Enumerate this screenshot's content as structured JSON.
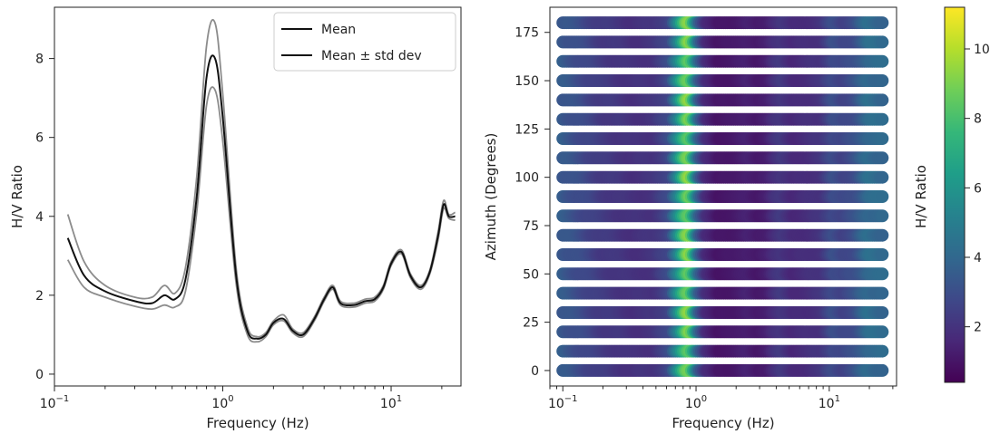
{
  "chart_data": [
    {
      "type": "line",
      "xscale": "log",
      "xlim": [
        0.1,
        26
      ],
      "ylim": [
        -0.3,
        9.3
      ],
      "xlabel": "Frequency (Hz)",
      "ylabel": "H/V Ratio",
      "x_ticks": [
        0.1,
        1,
        10
      ],
      "x_tick_labels": [
        {
          "base": "10",
          "exp": "−1"
        },
        {
          "base": "10",
          "exp": "0"
        },
        {
          "base": "10",
          "exp": "1"
        }
      ],
      "y_ticks": [
        0,
        2,
        4,
        6,
        8
      ],
      "grid": false,
      "legend_position": "top-right",
      "legend": [
        "Mean",
        "Mean ± std dev"
      ],
      "line_colors": {
        "mean": "#111111",
        "std": "#8c8c8c"
      },
      "series": [
        {
          "name": "Mean",
          "x": [
            0.12,
            0.15,
            0.2,
            0.3,
            0.38,
            0.45,
            0.52,
            0.6,
            0.7,
            0.8,
            0.9,
            1.0,
            1.2,
            1.4,
            1.6,
            1.8,
            2.0,
            2.3,
            2.6,
            3.0,
            3.5,
            4.0,
            4.5,
            5.0,
            6.0,
            7.0,
            8.0,
            9.0,
            10.0,
            11.5,
            13.0,
            15.0,
            17.0,
            19.0,
            20.5,
            22.0,
            24.0
          ],
          "y": [
            3.45,
            2.5,
            2.1,
            1.85,
            1.8,
            2.0,
            1.9,
            2.4,
            4.5,
            7.5,
            8.0,
            6.5,
            2.5,
            1.1,
            0.9,
            1.0,
            1.3,
            1.4,
            1.1,
            1.0,
            1.4,
            1.9,
            2.2,
            1.8,
            1.75,
            1.85,
            1.9,
            2.2,
            2.8,
            3.1,
            2.5,
            2.2,
            2.6,
            3.5,
            4.3,
            4.0,
            4.0
          ]
        },
        {
          "name": "Mean + std dev",
          "x": [
            0.12,
            0.15,
            0.2,
            0.3,
            0.38,
            0.45,
            0.52,
            0.6,
            0.7,
            0.8,
            0.9,
            1.0,
            1.2,
            1.4,
            1.6,
            1.8,
            2.0,
            2.3,
            2.6,
            3.0,
            3.5,
            4.0,
            4.5,
            5.0,
            6.0,
            7.0,
            8.0,
            9.0,
            10.0,
            11.5,
            13.0,
            15.0,
            17.0,
            19.0,
            20.5,
            22.0,
            24.0
          ],
          "y": [
            4.05,
            2.85,
            2.25,
            1.95,
            1.95,
            2.25,
            2.05,
            2.7,
            5.0,
            8.3,
            8.9,
            7.1,
            2.7,
            1.2,
            0.95,
            1.05,
            1.35,
            1.5,
            1.15,
            1.05,
            1.45,
            1.95,
            2.25,
            1.85,
            1.8,
            1.9,
            1.95,
            2.25,
            2.85,
            3.15,
            2.55,
            2.25,
            2.65,
            3.6,
            4.4,
            4.05,
            4.1
          ]
        },
        {
          "name": "Mean − std dev",
          "x": [
            0.12,
            0.15,
            0.2,
            0.3,
            0.38,
            0.45,
            0.52,
            0.6,
            0.7,
            0.8,
            0.9,
            1.0,
            1.2,
            1.4,
            1.6,
            1.8,
            2.0,
            2.3,
            2.6,
            3.0,
            3.5,
            4.0,
            4.5,
            5.0,
            6.0,
            7.0,
            8.0,
            9.0,
            10.0,
            11.5,
            13.0,
            15.0,
            17.0,
            19.0,
            20.5,
            22.0,
            24.0
          ],
          "y": [
            2.9,
            2.2,
            1.95,
            1.72,
            1.65,
            1.75,
            1.7,
            2.1,
            4.1,
            6.8,
            7.2,
            5.9,
            2.3,
            1.0,
            0.82,
            0.95,
            1.25,
            1.35,
            1.05,
            0.95,
            1.35,
            1.85,
            2.15,
            1.75,
            1.7,
            1.8,
            1.85,
            2.15,
            2.75,
            3.05,
            2.45,
            2.15,
            2.55,
            3.4,
            4.2,
            3.95,
            3.9
          ]
        }
      ]
    },
    {
      "type": "heatmap",
      "xscale": "log",
      "xlim": [
        0.08,
        32
      ],
      "ylim": [
        -8,
        188
      ],
      "xlabel": "Frequency (Hz)",
      "ylabel": "Azimuth (Degrees)",
      "x_ticks": [
        0.1,
        1,
        10
      ],
      "x_tick_labels": [
        {
          "base": "10",
          "exp": "−1"
        },
        {
          "base": "10",
          "exp": "0"
        },
        {
          "base": "10",
          "exp": "1"
        }
      ],
      "y_ticks": [
        0,
        25,
        50,
        75,
        100,
        125,
        150,
        175
      ],
      "azimuths": [
        0,
        10,
        20,
        30,
        40,
        50,
        60,
        70,
        80,
        90,
        100,
        110,
        120,
        130,
        140,
        150,
        160,
        170,
        180
      ],
      "freq_range": [
        0.1,
        25
      ],
      "profile_freqs": [
        0.1,
        0.2,
        0.35,
        0.5,
        0.65,
        0.75,
        0.85,
        0.9,
        0.95,
        1.05,
        1.2,
        1.5,
        2.0,
        2.5,
        3.0,
        3.5,
        4.0,
        4.5,
        5.5,
        7.0,
        9.0,
        11.0,
        13.0,
        16.0,
        20.0,
        25.0
      ],
      "profile_hv": [
        3.5,
        2.3,
        1.9,
        2.0,
        2.8,
        5.5,
        8.5,
        9.0,
        7.5,
        4.0,
        1.8,
        1.0,
        1.1,
        1.4,
        1.1,
        1.3,
        1.9,
        2.2,
        1.6,
        1.8,
        2.0,
        3.0,
        2.6,
        3.0,
        4.2,
        4.0
      ],
      "colorbar": {
        "label": "H/V Ratio",
        "range": [
          0.4,
          11.2
        ],
        "ticks": [
          2,
          4,
          6,
          8,
          10
        ]
      },
      "colormap": [
        "#440154",
        "#482878",
        "#3e4989",
        "#31688e",
        "#26828e",
        "#1f9e89",
        "#35b779",
        "#6ece58",
        "#b5de2b",
        "#fde725"
      ]
    }
  ]
}
